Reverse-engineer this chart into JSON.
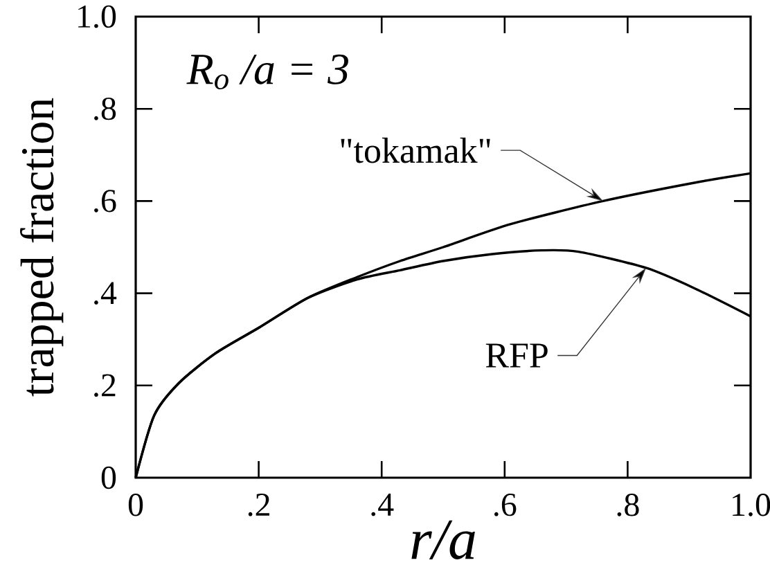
{
  "chart_data": {
    "type": "line",
    "xlabel": "r/a",
    "ylabel": "trapped fraction",
    "annotations": [
      "R$_{o}$ /a = 3"
    ],
    "xlim": [
      0,
      1
    ],
    "ylim": [
      0,
      1
    ],
    "xticks": [
      0,
      {
        "value": 0.2,
        "label": ".2"
      },
      {
        "value": 0.4,
        "label": ".4"
      },
      {
        "value": 0.6,
        "label": ".6"
      },
      {
        "value": 0.8,
        "label": ".8"
      },
      {
        "value": 1,
        "label": "1.0"
      }
    ],
    "yticks": [
      0,
      {
        "value": 0.2,
        "label": ".2"
      },
      {
        "value": 0.4,
        "label": ".4"
      },
      {
        "value": 0.6,
        "label": ".6"
      },
      {
        "value": 0.8,
        "label": ".8"
      },
      {
        "value": 1,
        "label": "1.0"
      }
    ],
    "line_style": "solid",
    "series": [
      {
        "name": "\"tokamak\"",
        "color": "#000000",
        "x": [
          0,
          0.03,
          0.07,
          0.13,
          0.2,
          0.28,
          0.36,
          0.43,
          0.5,
          0.61,
          0.76,
          0.91,
          1.0
        ],
        "values": [
          0,
          0.135,
          0.205,
          0.27,
          0.325,
          0.39,
          0.435,
          0.47,
          0.5,
          0.55,
          0.6,
          0.64,
          0.66
        ]
      },
      {
        "name": "RFP",
        "color": "#000000",
        "x": [
          0,
          0.03,
          0.07,
          0.13,
          0.2,
          0.28,
          0.36,
          0.43,
          0.5,
          0.58,
          0.66,
          0.72,
          0.83,
          0.91,
          1.0
        ],
        "values": [
          0,
          0.135,
          0.205,
          0.27,
          0.325,
          0.39,
          0.43,
          0.45,
          0.47,
          0.485,
          0.493,
          0.49,
          0.455,
          0.41,
          0.35
        ]
      }
    ]
  }
}
